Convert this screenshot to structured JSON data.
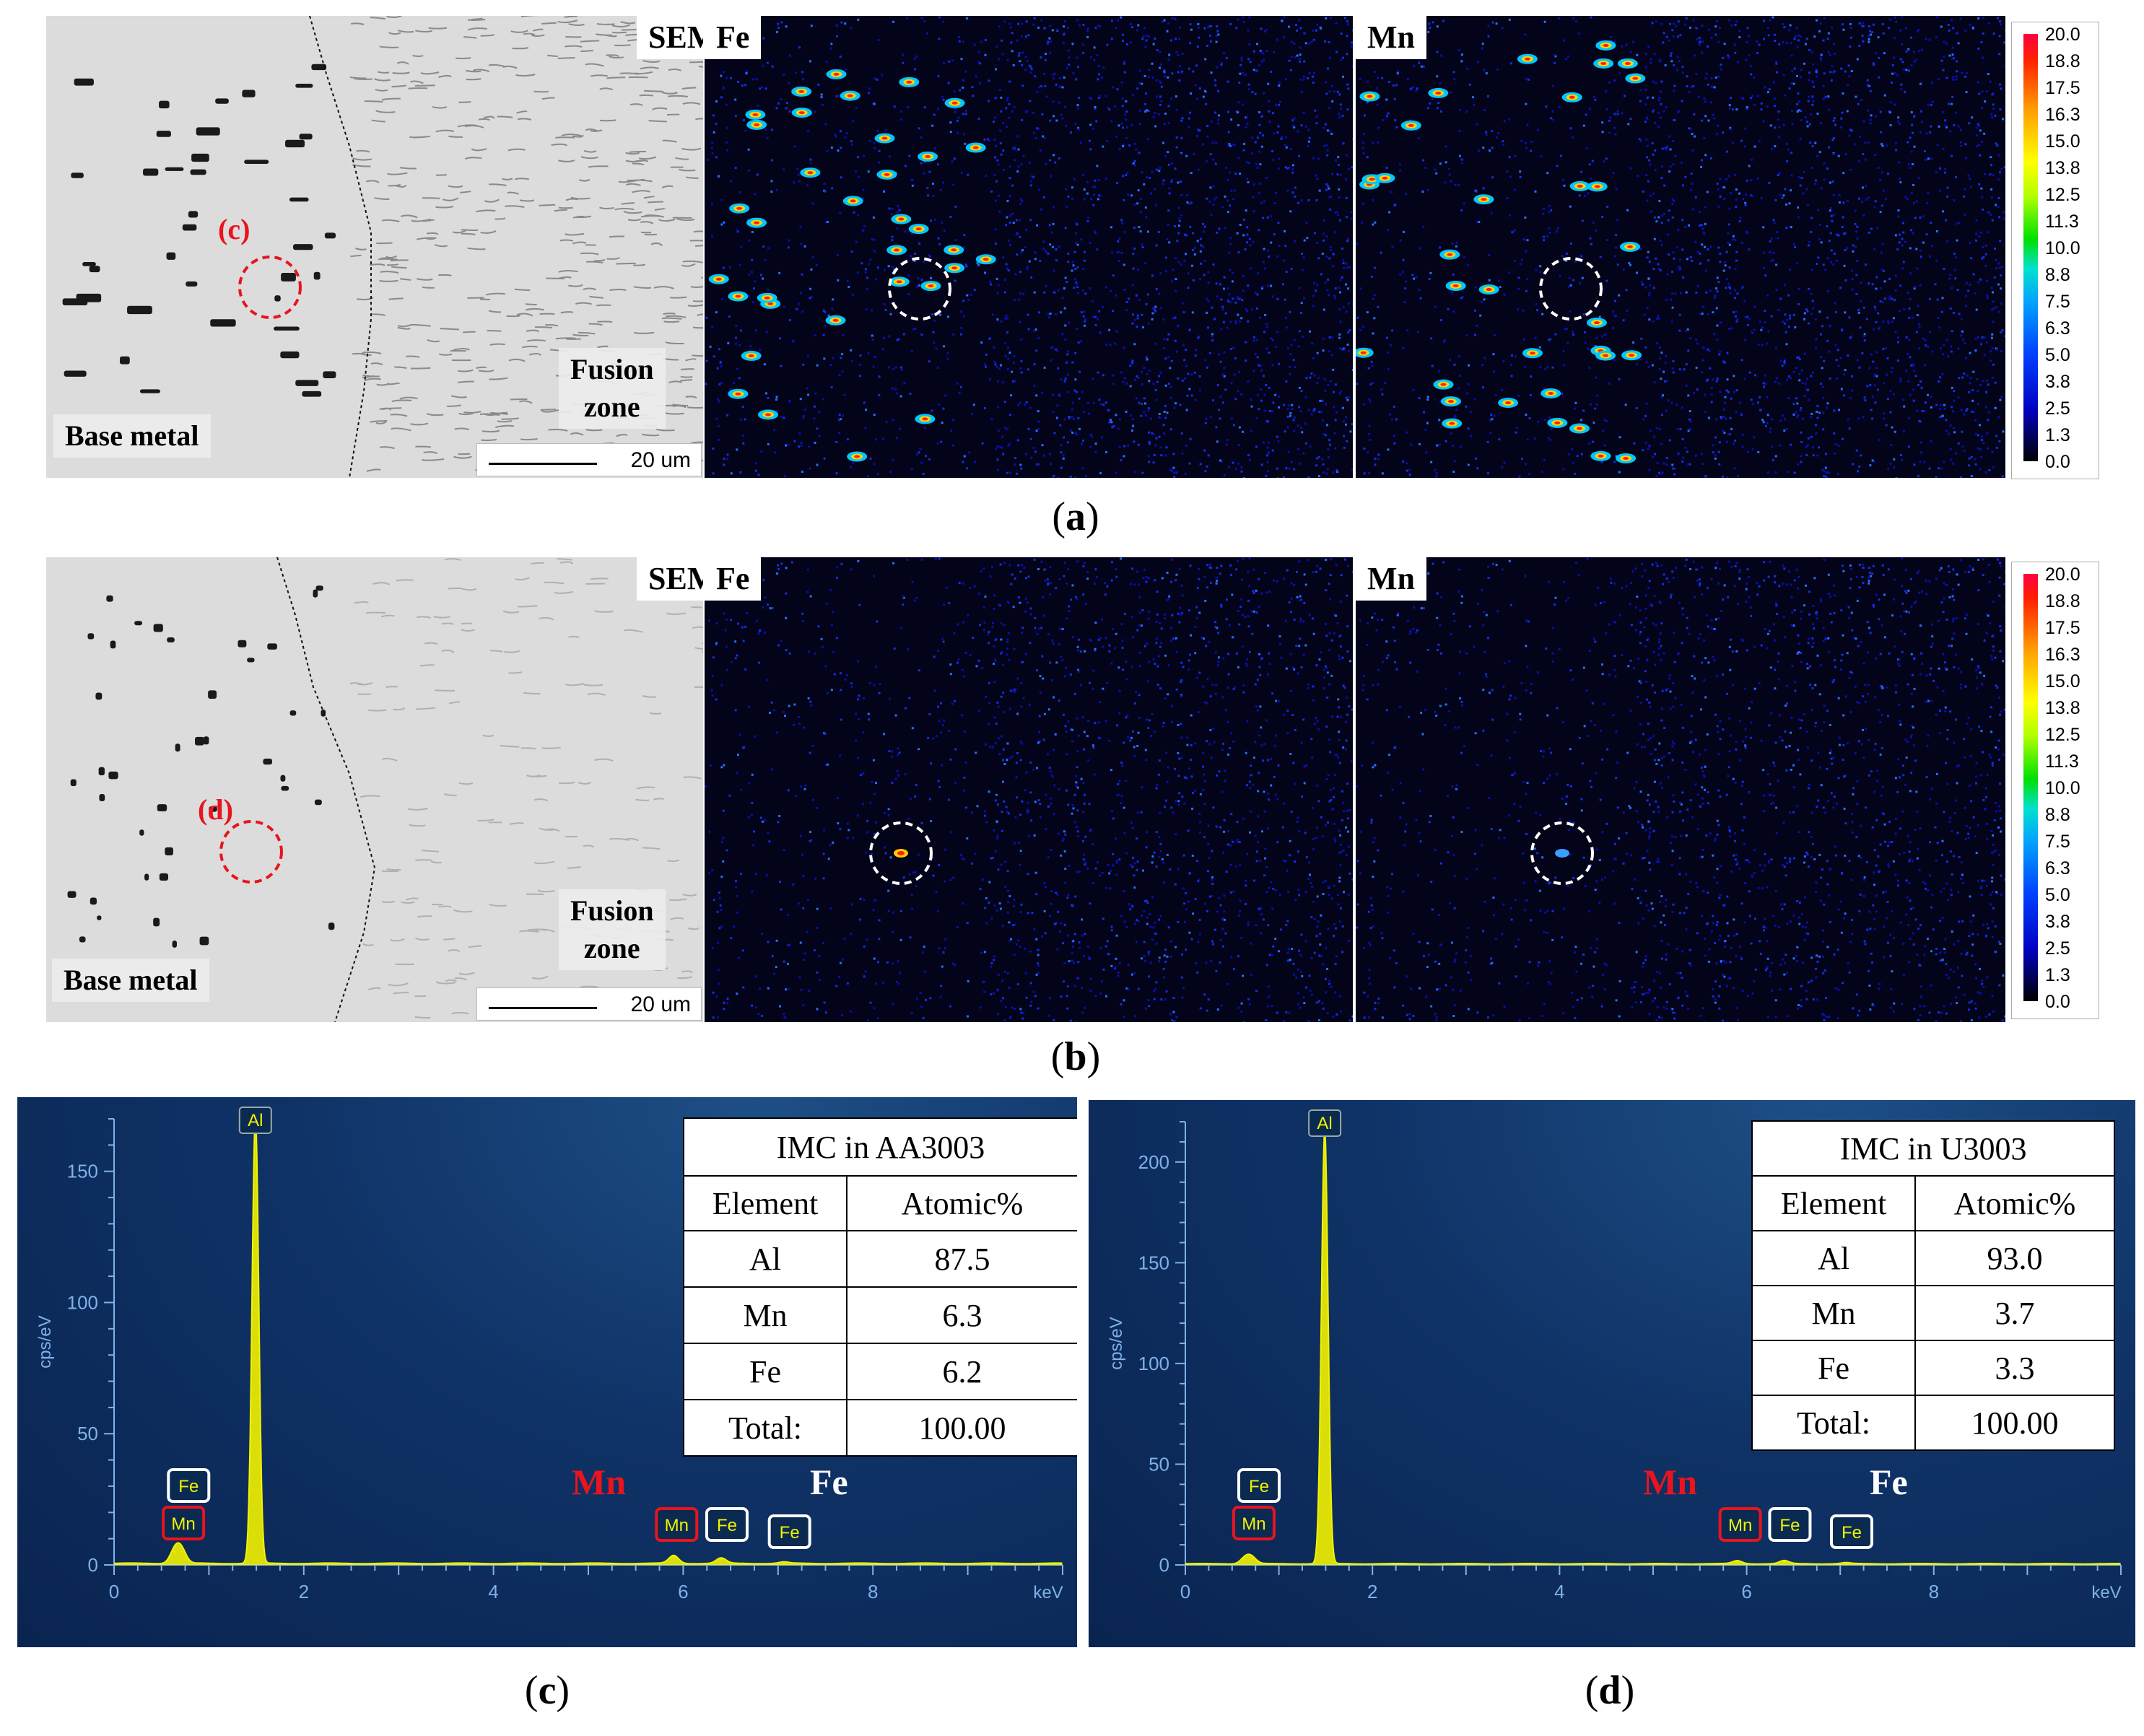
{
  "panel_a": {
    "sem_tag": "SEM",
    "fe_tag": "Fe",
    "mn_tag": "Mn",
    "marker": "(c)",
    "base_metal": "Base metal",
    "fusion_line1": "Fusion",
    "fusion_line2": "zone",
    "scale": "20 um",
    "caption_letter": "a"
  },
  "panel_b": {
    "sem_tag": "SEM",
    "fe_tag": "Fe",
    "mn_tag": "Mn",
    "marker": "(d)",
    "base_metal": "Base metal",
    "fusion_line1": "Fusion",
    "fusion_line2": "zone",
    "scale": "20 um",
    "caption_letter": "b"
  },
  "colorbar_ticks": [
    "20.0",
    "18.8",
    "17.5",
    "16.3",
    "15.0",
    "13.8",
    "12.5",
    "11.3",
    "10.0",
    "8.8",
    "7.5",
    "6.3",
    "5.0",
    "3.8",
    "2.5",
    "1.3",
    "0.0"
  ],
  "colors": {
    "marker_red": "#e8141e",
    "spectrum_yellow": "#f2f200",
    "axis_text": "#7fb2e8"
  },
  "panel_c": {
    "caption_letter": "c",
    "table": {
      "title": "IMC in AA3003",
      "headers": [
        "Element",
        "Atomic%"
      ],
      "rows": [
        [
          "Al",
          "87.5"
        ],
        [
          "Mn",
          "6.3"
        ],
        [
          "Fe",
          "6.2"
        ],
        [
          "Total:",
          "100.00"
        ]
      ]
    },
    "overlay_mn": "Mn",
    "overlay_fe": "Fe"
  },
  "panel_d": {
    "caption_letter": "d",
    "table": {
      "title": "IMC in U3003",
      "headers": [
        "Element",
        "Atomic%"
      ],
      "rows": [
        [
          "Al",
          "93.0"
        ],
        [
          "Mn",
          "3.7"
        ],
        [
          "Fe",
          "3.3"
        ],
        [
          "Total:",
          "100.00"
        ]
      ]
    },
    "overlay_mn": "Mn",
    "overlay_fe": "Fe"
  },
  "chart_data": [
    {
      "type": "line",
      "xlabel": "keV",
      "ylabel": "cps/eV",
      "xlim": [
        0,
        10
      ],
      "ylim": [
        0,
        170
      ],
      "x_ticks": [
        "0",
        "2",
        "4",
        "6",
        "8"
      ],
      "y_ticks": [
        "0",
        "50",
        "100",
        "150"
      ],
      "peaks": [
        {
          "label": "Al",
          "x": 1.49,
          "y": 170
        },
        {
          "label": "Fe",
          "x": 0.71,
          "y": 5
        },
        {
          "label": "Mn",
          "x": 0.64,
          "y": 5
        },
        {
          "label": "Mn",
          "x": 5.9,
          "y": 3
        },
        {
          "label": "Fe",
          "x": 6.4,
          "y": 2
        },
        {
          "label": "Fe",
          "x": 7.06,
          "y": 0.5
        }
      ],
      "peak_tags": {
        "fe_low": "Fe",
        "mn_low": "Mn",
        "al": "Al",
        "mn_high": "Mn",
        "fe_high": "Fe",
        "fe_kb": "Fe"
      }
    },
    {
      "type": "line",
      "xlabel": "keV",
      "ylabel": "cps/eV",
      "xlim": [
        0,
        10
      ],
      "ylim": [
        0,
        220
      ],
      "x_ticks": [
        "0",
        "2",
        "4",
        "6",
        "8"
      ],
      "y_ticks": [
        "0",
        "50",
        "100",
        "150",
        "200"
      ],
      "peaks": [
        {
          "label": "Al",
          "x": 1.49,
          "y": 215
        },
        {
          "label": "Fe",
          "x": 0.71,
          "y": 3
        },
        {
          "label": "Mn",
          "x": 0.64,
          "y": 3
        },
        {
          "label": "Mn",
          "x": 5.9,
          "y": 1.5
        },
        {
          "label": "Fe",
          "x": 6.4,
          "y": 1.5
        },
        {
          "label": "Fe",
          "x": 7.06,
          "y": 0.5
        }
      ],
      "peak_tags": {
        "fe_low": "Fe",
        "mn_low": "Mn",
        "al": "Al",
        "mn_high": "Mn",
        "fe_high": "Fe",
        "fe_kb": "Fe"
      }
    }
  ]
}
